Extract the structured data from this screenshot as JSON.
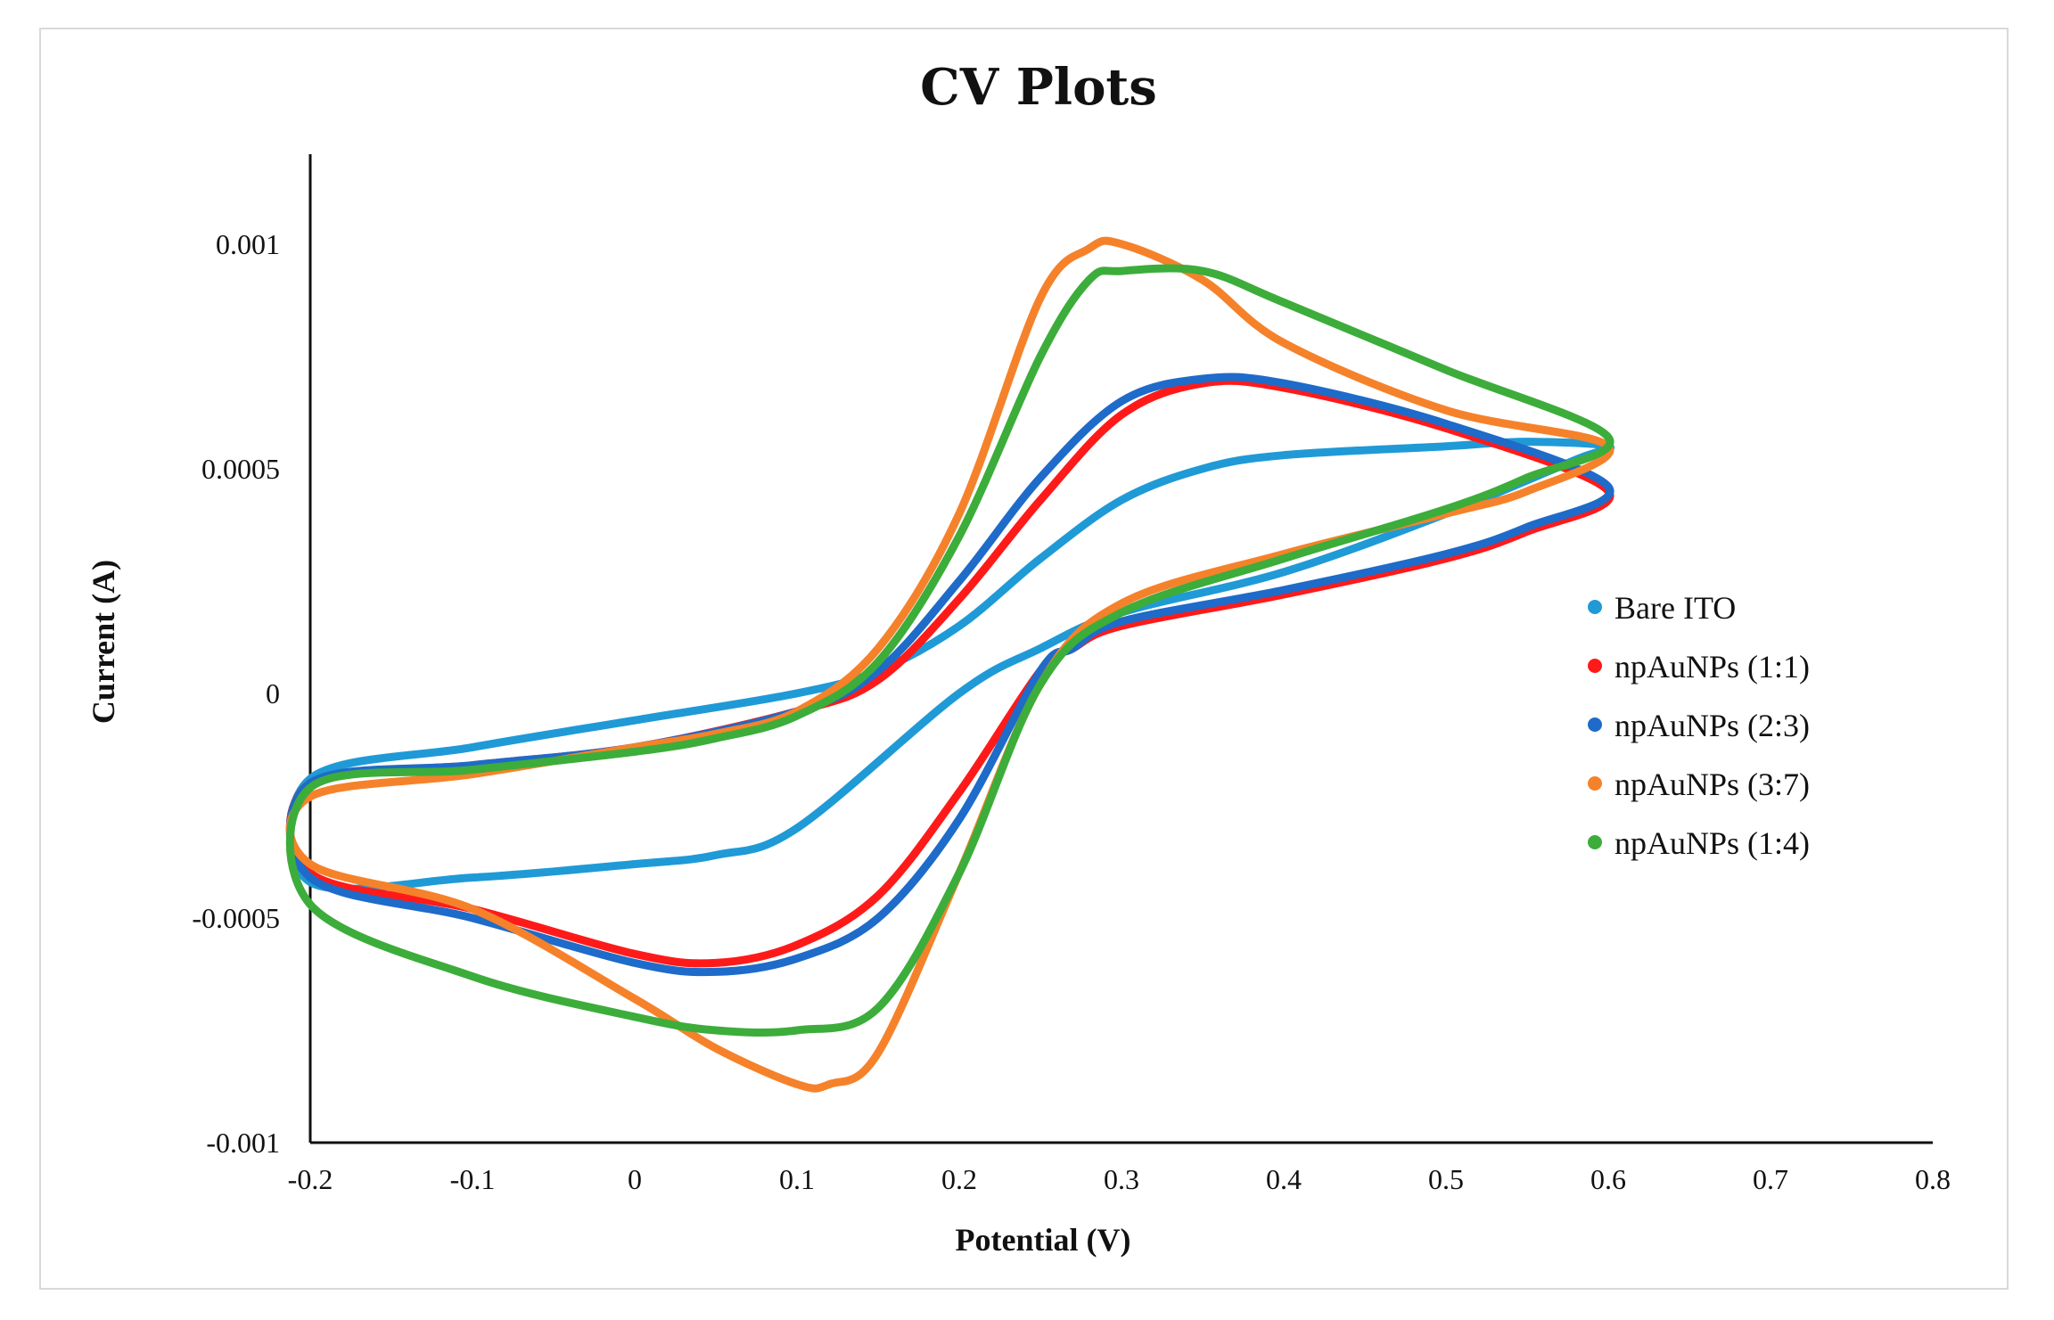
{
  "chart_data": {
    "type": "line",
    "title": "CV Plots",
    "xlabel": "Potential (V)",
    "ylabel": "Current (A)",
    "xlim": [
      -0.2,
      0.8
    ],
    "ylim": [
      -0.001,
      0.0012
    ],
    "x_ticks": [
      -0.2,
      -0.1,
      0,
      0.1,
      0.2,
      0.3,
      0.4,
      0.5,
      0.6,
      0.7,
      0.8
    ],
    "x_tick_labels": [
      "-0.2",
      "-0.1",
      "0",
      "0.1",
      "0.2",
      "0.3",
      "0.4",
      "0.5",
      "0.6",
      "0.7",
      "0.8"
    ],
    "y_ticks": [
      -0.001,
      -0.0005,
      0,
      0.0005,
      0.001
    ],
    "y_tick_labels": [
      "-0.001",
      "-0.0005",
      "0",
      "0.0005",
      "0.001"
    ],
    "grid": false,
    "legend_position": "right",
    "series": [
      {
        "name": "Bare ITO",
        "color": "#1f9ad6",
        "points": [
          [
            -0.2,
            -0.00019
          ],
          [
            -0.1,
            -0.00012
          ],
          [
            0,
            -6e-05
          ],
          [
            0.1,
            0.0
          ],
          [
            0.15,
            5e-05
          ],
          [
            0.2,
            0.00015
          ],
          [
            0.25,
            0.0003
          ],
          [
            0.3,
            0.00043
          ],
          [
            0.35,
            0.0005
          ],
          [
            0.4,
            0.00053
          ],
          [
            0.5,
            0.00055
          ],
          [
            0.55,
            0.00056
          ],
          [
            0.6,
            0.00055
          ],
          [
            0.58,
            0.00052
          ],
          [
            0.5,
            0.0004
          ],
          [
            0.4,
            0.00027
          ],
          [
            0.3,
            0.00018
          ],
          [
            0.25,
            0.0001
          ],
          [
            0.2,
            0.0
          ],
          [
            0.1,
            -0.0003
          ],
          [
            0.05,
            -0.00036
          ],
          [
            0,
            -0.00038
          ],
          [
            -0.1,
            -0.00041
          ],
          [
            -0.2,
            -0.00042
          ]
        ]
      },
      {
        "name": "npAuNPs (1:1)",
        "color": "#ff1a1a",
        "points": [
          [
            -0.2,
            -0.0002
          ],
          [
            -0.1,
            -0.00016
          ],
          [
            0,
            -0.00012
          ],
          [
            0.1,
            -4e-05
          ],
          [
            0.15,
            3e-05
          ],
          [
            0.2,
            0.00021
          ],
          [
            0.25,
            0.00043
          ],
          [
            0.3,
            0.00062
          ],
          [
            0.35,
            0.00069
          ],
          [
            0.4,
            0.00068
          ],
          [
            0.5,
            0.00059
          ],
          [
            0.6,
            0.00045
          ],
          [
            0.55,
            0.00036
          ],
          [
            0.5,
            0.0003
          ],
          [
            0.4,
            0.00022
          ],
          [
            0.3,
            0.00015
          ],
          [
            0.27,
            0.0001
          ],
          [
            0.25,
            5e-05
          ],
          [
            0.2,
            -0.00022
          ],
          [
            0.15,
            -0.00045
          ],
          [
            0.1,
            -0.00056
          ],
          [
            0.05,
            -0.0006
          ],
          [
            0,
            -0.00058
          ],
          [
            -0.1,
            -0.00048
          ],
          [
            -0.2,
            -0.0004
          ]
        ]
      },
      {
        "name": "npAuNPs (2:3)",
        "color": "#1e6bc9",
        "points": [
          [
            -0.2,
            -0.0002
          ],
          [
            -0.1,
            -0.00016
          ],
          [
            0,
            -0.00012
          ],
          [
            0.1,
            -4e-05
          ],
          [
            0.15,
            5e-05
          ],
          [
            0.2,
            0.00025
          ],
          [
            0.25,
            0.00048
          ],
          [
            0.3,
            0.00065
          ],
          [
            0.35,
            0.0007
          ],
          [
            0.4,
            0.00069
          ],
          [
            0.5,
            0.0006
          ],
          [
            0.6,
            0.00046
          ],
          [
            0.55,
            0.00037
          ],
          [
            0.5,
            0.00031
          ],
          [
            0.4,
            0.00023
          ],
          [
            0.3,
            0.00016
          ],
          [
            0.27,
            0.0001
          ],
          [
            0.25,
            5e-05
          ],
          [
            0.2,
            -0.00028
          ],
          [
            0.15,
            -0.0005
          ],
          [
            0.1,
            -0.00059
          ],
          [
            0.05,
            -0.00062
          ],
          [
            0,
            -0.0006
          ],
          [
            -0.1,
            -0.0005
          ],
          [
            -0.2,
            -0.00041
          ]
        ]
      },
      {
        "name": "npAuNPs (3:7)",
        "color": "#f5822a",
        "points": [
          [
            -0.2,
            -0.00023
          ],
          [
            -0.1,
            -0.00018
          ],
          [
            0,
            -0.00012
          ],
          [
            0.05,
            -9e-05
          ],
          [
            0.1,
            -4e-05
          ],
          [
            0.15,
            0.0001
          ],
          [
            0.2,
            0.0004
          ],
          [
            0.25,
            0.00088
          ],
          [
            0.28,
            0.00099
          ],
          [
            0.3,
            0.001
          ],
          [
            0.35,
            0.00092
          ],
          [
            0.4,
            0.00078
          ],
          [
            0.5,
            0.00063
          ],
          [
            0.6,
            0.00055
          ],
          [
            0.55,
            0.00045
          ],
          [
            0.5,
            0.0004
          ],
          [
            0.4,
            0.00031
          ],
          [
            0.3,
            0.0002
          ],
          [
            0.25,
            2e-05
          ],
          [
            0.2,
            -0.0004
          ],
          [
            0.15,
            -0.0008
          ],
          [
            0.12,
            -0.00087
          ],
          [
            0.1,
            -0.00087
          ],
          [
            0.05,
            -0.00079
          ],
          [
            0,
            -0.00068
          ],
          [
            -0.1,
            -0.00048
          ],
          [
            -0.2,
            -0.00038
          ]
        ]
      },
      {
        "name": "npAuNPs (1:4)",
        "color": "#3cad3a",
        "points": [
          [
            -0.2,
            -0.00021
          ],
          [
            -0.1,
            -0.00017
          ],
          [
            0,
            -0.00013
          ],
          [
            0.05,
            -0.0001
          ],
          [
            0.1,
            -5e-05
          ],
          [
            0.15,
            7e-05
          ],
          [
            0.2,
            0.00035
          ],
          [
            0.25,
            0.00075
          ],
          [
            0.28,
            0.00092
          ],
          [
            0.3,
            0.00094
          ],
          [
            0.35,
            0.00094
          ],
          [
            0.4,
            0.00087
          ],
          [
            0.5,
            0.00072
          ],
          [
            0.6,
            0.00057
          ],
          [
            0.55,
            0.00048
          ],
          [
            0.5,
            0.00041
          ],
          [
            0.4,
            0.0003
          ],
          [
            0.3,
            0.00018
          ],
          [
            0.25,
            2e-05
          ],
          [
            0.2,
            -0.0004
          ],
          [
            0.15,
            -0.0007
          ],
          [
            0.1,
            -0.00075
          ],
          [
            0.05,
            -0.00075
          ],
          [
            0,
            -0.00072
          ],
          [
            -0.1,
            -0.00063
          ],
          [
            -0.2,
            -0.00047
          ]
        ]
      }
    ]
  }
}
